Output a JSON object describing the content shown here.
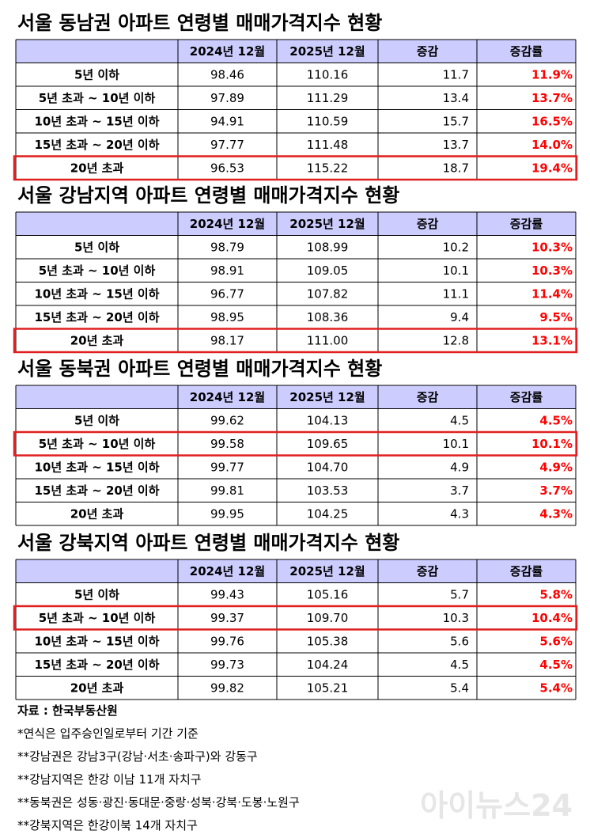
{
  "tables": [
    {
      "title": "서울 동남권 아파트 연령별 매매가격지수 현황",
      "header": [
        "2024년 12월",
        "2025년 12월",
        "증감",
        "증감률"
      ],
      "rows": [
        [
          "5년 이하",
          "98.46",
          "110.16",
          "11.7",
          "11.9%"
        ],
        [
          "5년 초과 ~ 10년 이하",
          "97.89",
          "111.29",
          "13.4",
          "13.7%"
        ],
        [
          "10년 초과 ~ 15년 이하",
          "94.91",
          "110.59",
          "15.7",
          "16.5%"
        ],
        [
          "15년 초과 ~ 20년 이하",
          "97.77",
          "111.48",
          "13.7",
          "14.0%"
        ],
        [
          "20년 초과",
          "96.53",
          "115.22",
          "18.7",
          "19.4%"
        ]
      ],
      "highlighted_row": 4
    },
    {
      "title": "서울 강남지역 아파트 연령별 매매가격지수 현황",
      "header": [
        "2024년 12월",
        "2025년 12월",
        "증감",
        "증감률"
      ],
      "rows": [
        [
          "5년 이하",
          "98.79",
          "108.99",
          "10.2",
          "10.3%"
        ],
        [
          "5년 초과 ~ 10년 이하",
          "98.91",
          "109.05",
          "10.1",
          "10.3%"
        ],
        [
          "10년 초과 ~ 15년 이하",
          "96.77",
          "107.82",
          "11.1",
          "11.4%"
        ],
        [
          "15년 초과 ~ 20년 이하",
          "98.95",
          "108.36",
          "9.4",
          "9.5%"
        ],
        [
          "20년 초과",
          "98.17",
          "111.00",
          "12.8",
          "13.1%"
        ]
      ],
      "highlighted_row": 4
    },
    {
      "title": "서울 동북권 아파트 연령별 매매가격지수 현황",
      "header": [
        "2024년 12월",
        "2025년 12월",
        "증감",
        "증감률"
      ],
      "rows": [
        [
          "5년 이하",
          "99.62",
          "104.13",
          "4.5",
          "4.5%"
        ],
        [
          "5년 초과 ~ 10년 이하",
          "99.58",
          "109.65",
          "10.1",
          "10.1%"
        ],
        [
          "10년 초과 ~ 15년 이하",
          "99.77",
          "104.70",
          "4.9",
          "4.9%"
        ],
        [
          "15년 초과 ~ 20년 이하",
          "99.81",
          "103.53",
          "3.7",
          "3.7%"
        ],
        [
          "20년 초과",
          "99.95",
          "104.25",
          "4.3",
          "4.3%"
        ]
      ],
      "highlighted_row": 1
    },
    {
      "title": "서울 강북지역 아파트 연령별 매매가격지수 현황",
      "header": [
        "2024년 12월",
        "2025년 12월",
        "증감",
        "증감률"
      ],
      "rows": [
        [
          "5년 이하",
          "99.43",
          "105.16",
          "5.7",
          "5.8%"
        ],
        [
          "5년 초과 ~ 10년 이하",
          "99.37",
          "109.70",
          "10.3",
          "10.4%"
        ],
        [
          "10년 초과 ~ 15년 이하",
          "99.76",
          "105.38",
          "5.6",
          "5.6%"
        ],
        [
          "15년 초과 ~ 20년 이하",
          "99.73",
          "104.24",
          "4.5",
          "4.5%"
        ],
        [
          "20년 초과",
          "99.82",
          "105.21",
          "5.4",
          "5.4%"
        ]
      ],
      "highlighted_row": 1
    }
  ],
  "notes": [
    "자료 : 한국부동산원",
    "*연식은 입주승인일로부터 기간 기준",
    "**강남권은 강남3구(강남·서초·송파구)와 강동구",
    "**강남지역은 한강 이남 11개 자치구",
    "**동북권은 성동·광진·동대문·중랑·성북·강북·도봉·노원구",
    "**강북지역은 한강이북 14개 자치구"
  ],
  "watermark": "아이뉴스24"
}
